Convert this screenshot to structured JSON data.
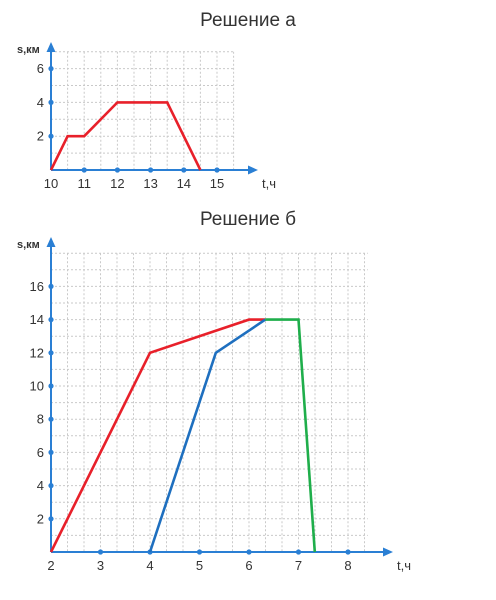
{
  "chart_data": [
    {
      "type": "line",
      "title": "Решение а",
      "xlabel": "t,ч",
      "ylabel": "s,км",
      "xlim": [
        10,
        15.5
      ],
      "ylim": [
        0,
        6.5
      ],
      "x_ticks": [
        "10",
        "11",
        "12",
        "13",
        "14",
        "15"
      ],
      "y_ticks": [
        "2",
        "4",
        "6"
      ],
      "grid": true,
      "series": [
        {
          "color": "#e8202a",
          "points": [
            [
              10,
              0
            ],
            [
              10.5,
              2
            ],
            [
              11,
              2
            ],
            [
              12,
              4
            ],
            [
              13.5,
              4
            ],
            [
              14.5,
              0
            ]
          ]
        }
      ]
    },
    {
      "type": "line",
      "title": "Решение б",
      "xlabel": "t,ч",
      "ylabel": "s,км",
      "xlim": [
        2,
        8.5
      ],
      "ylim": [
        0,
        17
      ],
      "x_ticks": [
        "2",
        "3",
        "4",
        "5",
        "6",
        "7",
        "8"
      ],
      "y_ticks": [
        "2",
        "4",
        "6",
        "8",
        "10",
        "12",
        "14",
        "16"
      ],
      "grid": true,
      "series": [
        {
          "color": "#e8202a",
          "points": [
            [
              2,
              0
            ],
            [
              4,
              12
            ],
            [
              6,
              14
            ],
            [
              6.33,
              14
            ]
          ]
        },
        {
          "color": "#1e6fbf",
          "points": [
            [
              4,
              0
            ],
            [
              5.33,
              12
            ],
            [
              6.33,
              14
            ]
          ]
        },
        {
          "color": "#1fae4b",
          "points": [
            [
              6.33,
              14
            ],
            [
              7,
              14
            ],
            [
              7.33,
              0
            ]
          ]
        }
      ]
    }
  ]
}
